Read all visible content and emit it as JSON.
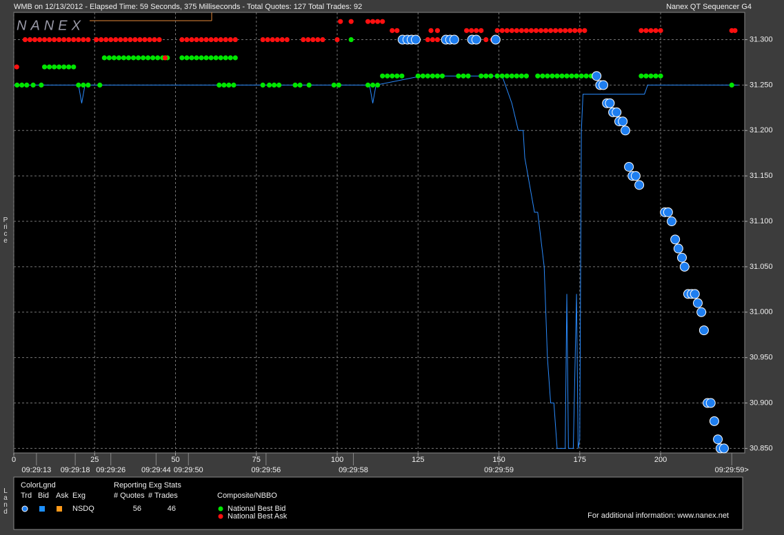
{
  "header": {
    "title": "WMB on 12/13/2012  -  Elapsed Time: 59 Seconds, 375 Milliseconds  -  Total Quotes: 127  Total Trades: 92",
    "app": "Nanex QT Sequencer G4",
    "logo": "NANEX"
  },
  "chart_data": {
    "type": "scatter",
    "y_label": "Price",
    "xlim": [
      0,
      226
    ],
    "ylim": [
      30.845,
      31.33
    ],
    "xticks": [
      0,
      25,
      50,
      75,
      100,
      125,
      150,
      175,
      200
    ],
    "time_ticks": [
      {
        "value": 7,
        "label": "09:29:13"
      },
      {
        "value": 19,
        "label": "09:29:18"
      },
      {
        "value": 30,
        "label": "09:29:26"
      },
      {
        "value": 44,
        "label": "09:29:44"
      },
      {
        "value": 54,
        "label": "09:29:50"
      },
      {
        "value": 78,
        "label": "09:29:56"
      },
      {
        "value": 105,
        "label": "09:29:58"
      },
      {
        "value": 150,
        "label": "09:29:59"
      },
      {
        "value": 222,
        "label": "09:29:59>"
      }
    ],
    "yticks": [
      {
        "value": 30.85,
        "label": "30.850"
      },
      {
        "value": 30.9,
        "label": "30.900"
      },
      {
        "value": 30.95,
        "label": "30.950"
      },
      {
        "value": 31.0,
        "label": "31.000"
      },
      {
        "value": 31.05,
        "label": "31.050"
      },
      {
        "value": 31.1,
        "label": "31.100"
      },
      {
        "value": 31.15,
        "label": "31.150"
      },
      {
        "value": 31.2,
        "label": "31.200"
      },
      {
        "value": 31.25,
        "label": "31.250"
      },
      {
        "value": 31.3,
        "label": "31.300"
      }
    ],
    "grid": true,
    "series": [
      {
        "kind": "line",
        "color": "#2a8cff",
        "x": [
          0,
          20,
          21,
          22,
          110,
          111,
          112,
          126,
          151,
          154,
          156,
          157.5,
          158,
          159,
          161,
          162,
          164,
          165,
          166,
          167,
          168,
          170.5,
          171,
          171.5,
          173,
          174,
          174.5,
          175,
          175.5,
          176,
          195,
          196,
          224
        ],
        "values": [
          31.25,
          31.25,
          31.23,
          31.25,
          31.25,
          31.23,
          31.25,
          31.26,
          31.26,
          31.23,
          31.2,
          31.2,
          31.17,
          31.15,
          31.11,
          31.11,
          31.05,
          30.95,
          30.9,
          30.9,
          30.85,
          30.85,
          31.02,
          30.85,
          30.85,
          31.02,
          30.85,
          30.86,
          31.2,
          31.24,
          31.24,
          31.25,
          31.25
        ]
      },
      {
        "name": "National Best Bid",
        "kind": "dot",
        "color": "#00e600",
        "x": [
          1,
          2.5,
          4,
          6,
          8.5,
          20,
          21.5,
          23,
          26.6,
          63.5,
          65,
          66.5,
          68,
          77,
          79,
          80.5,
          82,
          87,
          88.5,
          91.3,
          99,
          100.5,
          109.5,
          111,
          112.5,
          222,
          9.5,
          11,
          12.5,
          14,
          15.5,
          17,
          18.5,
          28,
          29.5,
          31,
          32.5,
          34,
          35.5,
          37,
          38.5,
          40,
          41.5,
          43,
          44.5,
          46,
          47.5,
          52,
          53.5,
          55,
          56.5,
          58,
          59.5,
          61,
          62.5,
          64,
          65.5,
          67,
          68.5,
          114,
          115.5,
          117,
          118.5,
          120,
          125,
          126.5,
          128,
          129.5,
          131,
          132.5,
          137.5,
          139,
          140.5,
          144.5,
          146,
          147.5,
          149.5,
          151,
          152.5,
          154,
          155.5,
          157,
          158.5,
          162,
          163.5,
          165,
          166.5,
          168,
          169.5,
          171,
          172.5,
          174,
          175.5,
          177,
          178.5,
          194,
          195.5,
          197,
          198.5,
          200,
          104.3
        ],
        "values": [
          31.25,
          31.25,
          31.25,
          31.25,
          31.25,
          31.25,
          31.25,
          31.25,
          31.25,
          31.25,
          31.25,
          31.25,
          31.25,
          31.25,
          31.25,
          31.25,
          31.25,
          31.25,
          31.25,
          31.25,
          31.25,
          31.25,
          31.25,
          31.25,
          31.25,
          31.25,
          31.27,
          31.27,
          31.27,
          31.27,
          31.27,
          31.27,
          31.27,
          31.28,
          31.28,
          31.28,
          31.28,
          31.28,
          31.28,
          31.28,
          31.28,
          31.28,
          31.28,
          31.28,
          31.28,
          31.28,
          31.28,
          31.28,
          31.28,
          31.28,
          31.28,
          31.28,
          31.28,
          31.28,
          31.28,
          31.28,
          31.28,
          31.28,
          31.28,
          31.26,
          31.26,
          31.26,
          31.26,
          31.26,
          31.26,
          31.26,
          31.26,
          31.26,
          31.26,
          31.26,
          31.26,
          31.26,
          31.26,
          31.26,
          31.26,
          31.26,
          31.26,
          31.26,
          31.26,
          31.26,
          31.26,
          31.26,
          31.26,
          31.26,
          31.26,
          31.26,
          31.26,
          31.26,
          31.26,
          31.26,
          31.26,
          31.26,
          31.26,
          31.26,
          31.26,
          31.26,
          31.26,
          31.26,
          31.26,
          31.26,
          31.3
        ]
      },
      {
        "name": "National Best Ask",
        "kind": "dot",
        "color": "#ff1010",
        "x": [
          0.9,
          46.8,
          3.5,
          5,
          6.5,
          8,
          9.5,
          11,
          12.5,
          14,
          15.5,
          17,
          18.5,
          20,
          21.5,
          23,
          25.5,
          27,
          28.5,
          30,
          31.5,
          33,
          34.5,
          36,
          37.5,
          39,
          40.5,
          42,
          43.5,
          45,
          52,
          53.5,
          55,
          56.5,
          58,
          59.5,
          61,
          62.5,
          64,
          65.5,
          67,
          68.5,
          77,
          78.5,
          80,
          81.5,
          83,
          84.5,
          89.5,
          91,
          92.5,
          94,
          95.5,
          100,
          128,
          129.5,
          131,
          146,
          148,
          117,
          118.5,
          129,
          131,
          140,
          141.5,
          143,
          144.5,
          149.5,
          151,
          152.5,
          154,
          155.5,
          157,
          158.5,
          160,
          161.5,
          163,
          164.5,
          166,
          167.5,
          169,
          170.5,
          172,
          173.5,
          175,
          176.5,
          194,
          195.5,
          197,
          198.5,
          200,
          222,
          223,
          101,
          104.3,
          109.5,
          111,
          112.5,
          114
        ],
        "values": [
          31.27,
          31.28,
          31.3,
          31.3,
          31.3,
          31.3,
          31.3,
          31.3,
          31.3,
          31.3,
          31.3,
          31.3,
          31.3,
          31.3,
          31.3,
          31.3,
          31.3,
          31.3,
          31.3,
          31.3,
          31.3,
          31.3,
          31.3,
          31.3,
          31.3,
          31.3,
          31.3,
          31.3,
          31.3,
          31.3,
          31.3,
          31.3,
          31.3,
          31.3,
          31.3,
          31.3,
          31.3,
          31.3,
          31.3,
          31.3,
          31.3,
          31.3,
          31.3,
          31.3,
          31.3,
          31.3,
          31.3,
          31.3,
          31.3,
          31.3,
          31.3,
          31.3,
          31.3,
          31.3,
          31.3,
          31.3,
          31.3,
          31.3,
          31.3,
          31.31,
          31.31,
          31.31,
          31.31,
          31.31,
          31.31,
          31.31,
          31.31,
          31.31,
          31.31,
          31.31,
          31.31,
          31.31,
          31.31,
          31.31,
          31.31,
          31.31,
          31.31,
          31.31,
          31.31,
          31.31,
          31.31,
          31.31,
          31.31,
          31.31,
          31.31,
          31.31,
          31.31,
          31.31,
          31.31,
          31.31,
          31.31,
          31.31,
          31.31,
          31.32,
          31.32,
          31.32,
          31.32,
          31.32,
          31.32
        ]
      },
      {
        "name": "Trd",
        "kind": "trade",
        "color": "#1e7ef0",
        "x": [
          120.2,
          121.7,
          123,
          124.3,
          133.6,
          134.9,
          136.2,
          141.7,
          143,
          149,
          180.2,
          181.3,
          182.3,
          183.4,
          184.3,
          185.3,
          186.4,
          187.2,
          188.3,
          189.1,
          190.2,
          191.3,
          192.3,
          193.4,
          201.3,
          202.3,
          203.4,
          204.5,
          205.5,
          206.6,
          207.4,
          208.5,
          209.6,
          210.6,
          211.5,
          212.6,
          213.4,
          214.5,
          215.5,
          216.6,
          217.7,
          218.5,
          219.6
        ],
        "values": [
          31.3,
          31.3,
          31.3,
          31.3,
          31.3,
          31.3,
          31.3,
          31.3,
          31.3,
          31.3,
          31.26,
          31.25,
          31.25,
          31.23,
          31.23,
          31.22,
          31.22,
          31.21,
          31.21,
          31.2,
          31.16,
          31.15,
          31.15,
          31.14,
          31.11,
          31.11,
          31.1,
          31.08,
          31.07,
          31.06,
          31.05,
          31.02,
          31.02,
          31.02,
          31.01,
          31.0,
          30.98,
          30.9,
          30.9,
          30.88,
          30.86,
          30.85,
          30.85
        ]
      }
    ]
  },
  "legend_panel": {
    "side_label": "Land",
    "color_legend": "ColorLgnd",
    "columns": [
      "Trd",
      "Bid",
      "Ask",
      "Exg"
    ],
    "exchange": "NSDQ",
    "stats_title": "Reporting Exg Stats",
    "stats_headers": [
      "# Quotes",
      "# Trades"
    ],
    "quotes": 56,
    "trades": 46,
    "composite_title": "Composite/NBBO",
    "footer": "For additional information: www.nanex.net"
  }
}
